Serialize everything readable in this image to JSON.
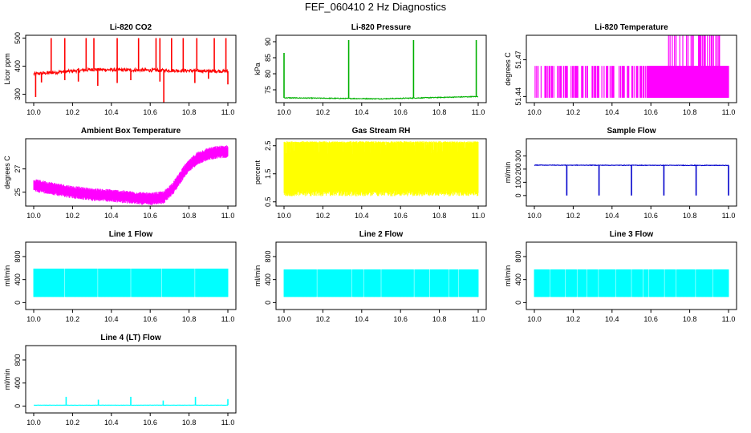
{
  "figure_title": "FEF_060410  2 Hz Diagnostics",
  "chart_data": [
    {
      "type": "line",
      "title": "Li-820 CO2",
      "ylabel": "Licor ppm",
      "color": "#ff0000",
      "xlim": [
        10.0,
        11.0
      ],
      "ylim": [
        270,
        510
      ],
      "xticks": [
        10.0,
        10.2,
        10.4,
        10.6,
        10.8,
        11.0
      ],
      "yticks": [
        300,
        400,
        500
      ],
      "series": [
        {
          "baseline": 378,
          "noise": 12,
          "drift": [
            [
              10.0,
              372
            ],
            [
              10.3,
              388
            ],
            [
              11.0,
              382
            ]
          ],
          "spikes_up": [
            [
              10.09,
              500
            ],
            [
              10.16,
              500
            ],
            [
              10.27,
              500
            ],
            [
              10.31,
              500
            ],
            [
              10.43,
              500
            ],
            [
              10.54,
              500
            ],
            [
              10.63,
              500
            ],
            [
              10.65,
              500
            ],
            [
              10.71,
              500
            ],
            [
              10.77,
              500
            ],
            [
              10.84,
              500
            ],
            [
              10.93,
              500
            ],
            [
              10.99,
              500
            ]
          ],
          "spikes_down": [
            [
              10.01,
              290
            ],
            [
              10.04,
              342
            ],
            [
              10.16,
              350
            ],
            [
              10.23,
              345
            ],
            [
              10.33,
              330
            ],
            [
              10.43,
              340
            ],
            [
              10.5,
              350
            ],
            [
              10.65,
              345
            ],
            [
              10.67,
              270
            ],
            [
              10.83,
              340
            ],
            [
              10.9,
              355
            ],
            [
              11.0,
              335
            ]
          ]
        }
      ]
    },
    {
      "type": "line",
      "title": "Li-820 Pressure",
      "ylabel": "kPa",
      "color": "#00b000",
      "xlim": [
        10.0,
        11.0
      ],
      "ylim": [
        71,
        92
      ],
      "xticks": [
        10.0,
        10.2,
        10.4,
        10.6,
        10.8,
        11.0
      ],
      "yticks": [
        75,
        80,
        85,
        90
      ],
      "series": [
        {
          "baseline": 72.4,
          "noise": 0.25,
          "drift": [
            [
              10.0,
              72.5
            ],
            [
              10.5,
              72.2
            ],
            [
              11.0,
              72.9
            ]
          ],
          "spikes_up": [
            [
              10.0,
              86.5
            ],
            [
              10.333,
              90.5
            ],
            [
              10.667,
              90.5
            ],
            [
              10.99,
              90.5
            ]
          ],
          "spikes_down": []
        }
      ]
    },
    {
      "type": "bar",
      "title": "Li-820 Temperature",
      "ylabel": "degrees C",
      "color": "#ff00ff",
      "xlim": [
        10.0,
        11.0
      ],
      "ylim": [
        51.435,
        51.49
      ],
      "xticks": [
        10.0,
        10.2,
        10.4,
        10.6,
        10.8,
        11.0
      ],
      "yticks": [
        51.44,
        51.47
      ],
      "series": [
        {
          "base": 51.439,
          "level": 51.465,
          "high": 51.49,
          "dense_from": 10.58,
          "high_from": 10.69,
          "high_to": 10.97
        }
      ]
    },
    {
      "type": "area",
      "title": "Ambient Box Temperature",
      "ylabel": "degrees C",
      "color": "#ff00ff",
      "xlim": [
        10.0,
        11.0
      ],
      "ylim": [
        23.8,
        29.6
      ],
      "xticks": [
        10.0,
        10.2,
        10.4,
        10.6,
        10.8,
        11.0
      ],
      "yticks": [
        25,
        27
      ],
      "series": [
        {
          "curve": [
            [
              10.0,
              25.6
            ],
            [
              10.1,
              25.3
            ],
            [
              10.2,
              25.0
            ],
            [
              10.3,
              24.8
            ],
            [
              10.4,
              24.7
            ],
            [
              10.5,
              24.55
            ],
            [
              10.6,
              24.4
            ],
            [
              10.67,
              24.55
            ],
            [
              10.72,
              25.4
            ],
            [
              10.78,
              26.9
            ],
            [
              10.84,
              27.9
            ],
            [
              10.9,
              28.3
            ],
            [
              10.95,
              28.45
            ],
            [
              11.0,
              28.5
            ]
          ],
          "band": 0.85
        }
      ]
    },
    {
      "type": "area",
      "title": "Gas Stream RH",
      "ylabel": "percent",
      "color": "#ffff00",
      "xlim": [
        10.0,
        11.0
      ],
      "ylim": [
        0.35,
        2.75
      ],
      "xticks": [
        10.0,
        10.2,
        10.4,
        10.6,
        10.8,
        11.0
      ],
      "yticks": [
        0.5,
        1.5,
        2.5
      ],
      "series": [
        {
          "low": 0.9,
          "high": 2.6,
          "low_min": 0.7,
          "high_max": 2.7
        }
      ]
    },
    {
      "type": "line",
      "title": "Sample Flow",
      "ylabel": "ml/min",
      "color": "#0000cc",
      "xlim": [
        10.0,
        11.0
      ],
      "ylim": [
        -80,
        430
      ],
      "xticks": [
        10.0,
        10.2,
        10.4,
        10.6,
        10.8,
        11.0
      ],
      "yticks": [
        0,
        100,
        200,
        300
      ],
      "series": [
        {
          "baseline": 230,
          "noise": 4,
          "drift": [
            [
              10.0,
              230
            ],
            [
              11.0,
              228
            ]
          ],
          "spikes_up": [],
          "spikes_down": [
            [
              10.167,
              0
            ],
            [
              10.333,
              0
            ],
            [
              10.5,
              0
            ],
            [
              10.667,
              0
            ],
            [
              10.833,
              0
            ],
            [
              11.0,
              0
            ]
          ]
        }
      ]
    },
    {
      "type": "area",
      "title": "Line 1 Flow",
      "ylabel": "ml/min",
      "color": "#00ffff",
      "xlim": [
        10.0,
        11.0
      ],
      "ylim": [
        -120,
        1050
      ],
      "xticks": [
        10.0,
        10.2,
        10.4,
        10.6,
        10.8,
        11.0
      ],
      "yticks": [
        0,
        400,
        800
      ],
      "series": [
        {
          "low": 100,
          "high": 590,
          "gaps": [
            10.16,
            10.33,
            10.5,
            10.66,
            10.83
          ]
        }
      ]
    },
    {
      "type": "area",
      "title": "Line 2 Flow",
      "ylabel": "ml/min",
      "color": "#00ffff",
      "xlim": [
        10.0,
        11.0
      ],
      "ylim": [
        -120,
        1050
      ],
      "xticks": [
        10.0,
        10.2,
        10.4,
        10.6,
        10.8,
        11.0
      ],
      "yticks": [
        0,
        400,
        800
      ],
      "series": [
        {
          "low": 100,
          "high": 575,
          "gaps": [
            10.17,
            10.35,
            10.41,
            10.5,
            10.67,
            10.75,
            10.85,
            10.9
          ]
        }
      ]
    },
    {
      "type": "area",
      "title": "Line 3 Flow",
      "ylabel": "ml/min",
      "color": "#00ffff",
      "xlim": [
        10.0,
        11.0
      ],
      "ylim": [
        -120,
        1050
      ],
      "xticks": [
        10.0,
        10.2,
        10.4,
        10.6,
        10.8,
        11.0
      ],
      "yticks": [
        0,
        400,
        800
      ],
      "series": [
        {
          "low": 100,
          "high": 575,
          "gaps": [
            10.08,
            10.16,
            10.22,
            10.27,
            10.33,
            10.42,
            10.5,
            10.56,
            10.59,
            10.67,
            10.73,
            10.83,
            10.92
          ]
        }
      ]
    },
    {
      "type": "line",
      "title": "Line 4 (LT) Flow",
      "ylabel": "ml/min",
      "color": "#00ffff",
      "xlim": [
        10.0,
        11.0
      ],
      "ylim": [
        -120,
        1050
      ],
      "xticks": [
        10.0,
        10.2,
        10.4,
        10.6,
        10.8,
        11.0
      ],
      "yticks": [
        0,
        400,
        800
      ],
      "series": [
        {
          "baseline": 15,
          "noise": 3,
          "drift": [
            [
              10.0,
              15
            ],
            [
              11.0,
              15
            ]
          ],
          "spikes_up": [
            [
              10.167,
              160
            ],
            [
              10.333,
              110
            ],
            [
              10.5,
              160
            ],
            [
              10.667,
              95
            ],
            [
              10.833,
              160
            ],
            [
              11.0,
              120
            ]
          ],
          "spikes_down": []
        }
      ]
    }
  ]
}
